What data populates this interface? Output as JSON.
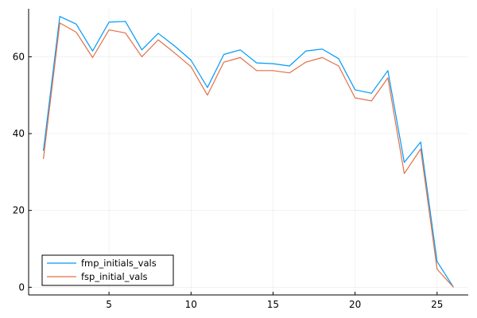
{
  "chart_data": {
    "type": "line",
    "title": "",
    "xlabel": "",
    "ylabel": "",
    "xlim": [
      0.1,
      26.9
    ],
    "ylim": [
      -2,
      72.5
    ],
    "xticks": [
      5,
      10,
      15,
      20,
      25
    ],
    "yticks": [
      0,
      20,
      40,
      60
    ],
    "grid": true,
    "legend_position": "bottom-left",
    "x": [
      1,
      2,
      3,
      4,
      5,
      6,
      7,
      8,
      9,
      10,
      11,
      12,
      13,
      14,
      15,
      16,
      17,
      18,
      19,
      20,
      21,
      22,
      23,
      24,
      25,
      26
    ],
    "series": [
      {
        "name": "fmp_initials_vals",
        "color": "#009AF9",
        "values": [
          35.5,
          70.5,
          68.5,
          61.5,
          69.0,
          69.2,
          61.8,
          66.1,
          62.8,
          59.1,
          52.0,
          60.6,
          61.8,
          58.4,
          58.2,
          57.6,
          61.5,
          62.0,
          59.5,
          51.4,
          50.5,
          56.4,
          32.5,
          37.8,
          6.7,
          0.0
        ]
      },
      {
        "name": "fsp_initial_vals",
        "color": "#E26F46",
        "values": [
          33.4,
          68.8,
          66.4,
          59.8,
          67.0,
          66.2,
          60.0,
          64.4,
          61.0,
          57.4,
          50.0,
          58.6,
          59.8,
          56.4,
          56.4,
          55.8,
          58.6,
          59.8,
          57.6,
          49.3,
          48.5,
          54.5,
          29.6,
          36.0,
          4.7,
          0.0
        ]
      }
    ]
  }
}
